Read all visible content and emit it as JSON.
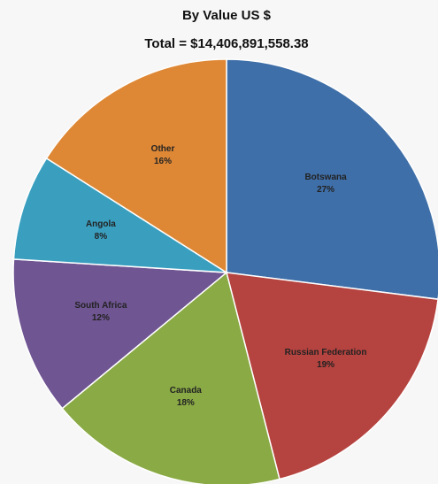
{
  "chart_data": {
    "type": "pie",
    "title": "By Value US $",
    "subtitle": "Total = $14,406,891,558.38",
    "categories": [
      "Botswana",
      "Russian Federation",
      "Canada",
      "South Africa",
      "Angola",
      "Other"
    ],
    "values": [
      27,
      19,
      18,
      12,
      8,
      16
    ],
    "value_labels": [
      "27%",
      "19%",
      "18%",
      "12%",
      "8%",
      "16%"
    ],
    "colors": [
      "#3f6fa8",
      "#b5433f",
      "#8aaa45",
      "#6f5592",
      "#3a9fbf",
      "#de8835"
    ]
  }
}
